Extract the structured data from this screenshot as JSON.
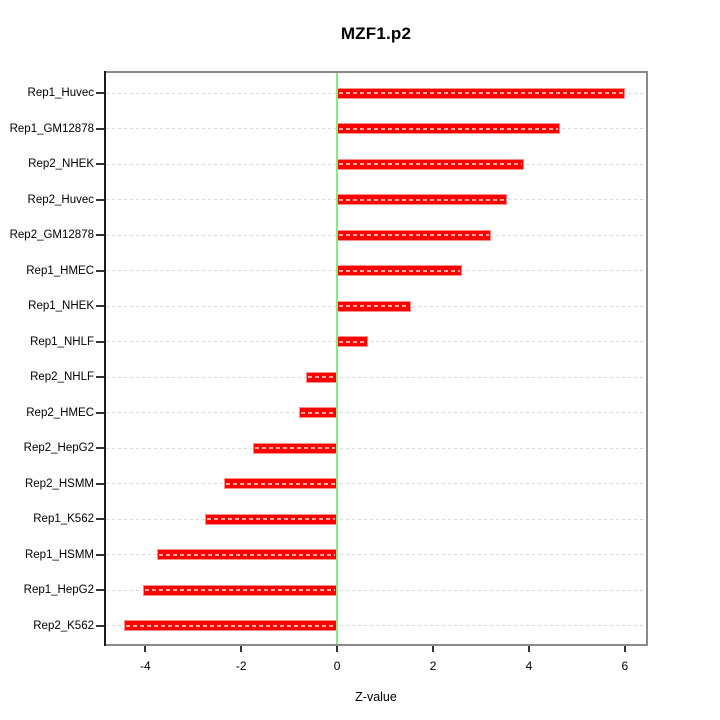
{
  "figure": {
    "title": "MZF1.p2"
  },
  "chart_data": {
    "type": "bar",
    "orientation": "horizontal",
    "title": "MZF1.p2",
    "xlabel": "Z-value",
    "ylabel": "",
    "categories": [
      "Rep1_Huvec",
      "Rep1_GM12878",
      "Rep2_NHEK",
      "Rep2_Huvec",
      "Rep2_GM12878",
      "Rep1_HMEC",
      "Rep1_NHEK",
      "Rep1_NHLF",
      "Rep2_NHLF",
      "Rep2_HMEC",
      "Rep2_HepG2",
      "Rep2_HSMM",
      "Rep1_K562",
      "Rep1_HSMM",
      "Rep1_HepG2",
      "Rep2_K562"
    ],
    "values": [
      6.0,
      4.65,
      3.9,
      3.55,
      3.2,
      2.6,
      1.55,
      0.65,
      -0.65,
      -0.8,
      -1.75,
      -2.35,
      -2.75,
      -3.75,
      -4.05,
      -4.45
    ],
    "x_ticks": [
      -4,
      -2,
      0,
      2,
      4,
      6
    ],
    "xlim": [
      -4.82,
      6.44
    ],
    "grid": "dotted horizontal line per category",
    "legend": null,
    "colors": {
      "bar_fill": "#ff0000",
      "bar_edge": "#ff8d8d",
      "zero_line": "#84ea84",
      "grid_line": "#d8d8d8",
      "plot_border": "#8a8a8a",
      "axis_line": "#1b1b1b",
      "text": "#000000"
    }
  }
}
